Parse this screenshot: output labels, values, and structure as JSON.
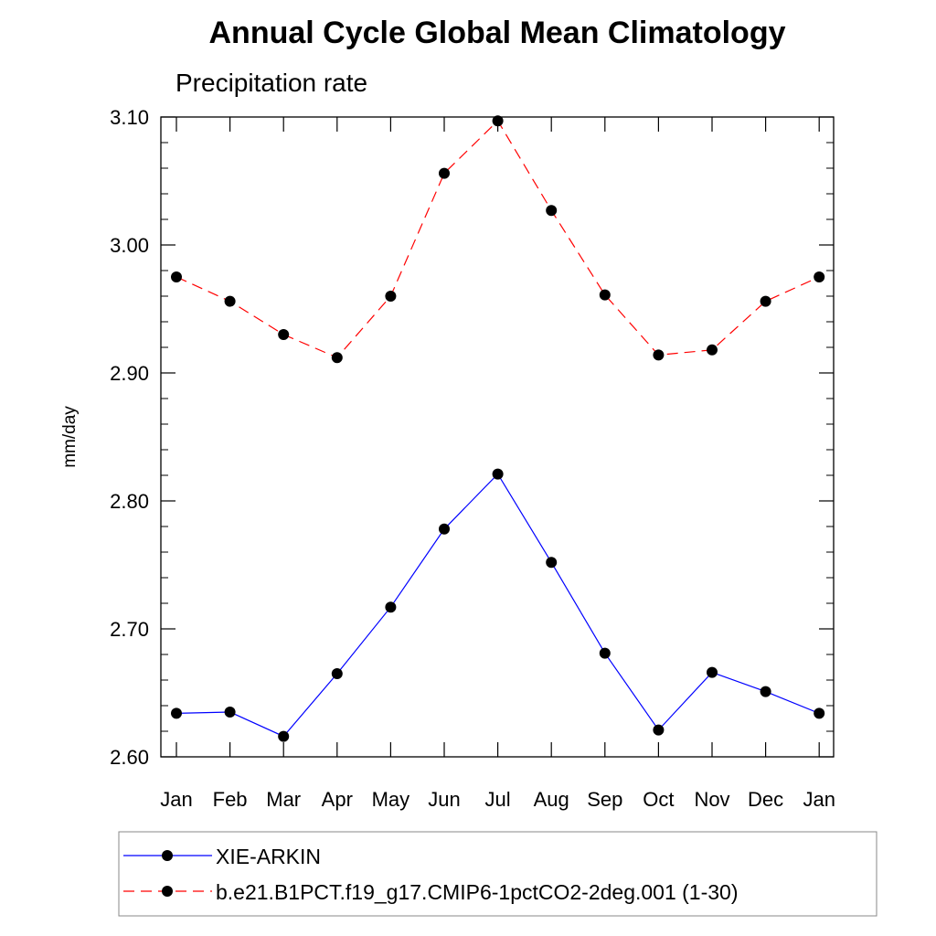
{
  "chart_data": {
    "type": "line",
    "title": "Annual Cycle Global Mean Climatology",
    "subtitle": "Precipitation rate",
    "xlabel": "",
    "ylabel": "mm/day",
    "categories": [
      "Jan",
      "Feb",
      "Mar",
      "Apr",
      "May",
      "Jun",
      "Jul",
      "Aug",
      "Sep",
      "Oct",
      "Nov",
      "Dec",
      "Jan"
    ],
    "ylim": [
      2.6,
      3.1
    ],
    "yticks": [
      "2.60",
      "2.70",
      "2.80",
      "2.90",
      "3.00",
      "3.10"
    ],
    "series": [
      {
        "name": "XIE-ARKIN",
        "color": "#0000ff",
        "dash": "solid",
        "values": [
          2.634,
          2.635,
          2.616,
          2.665,
          2.717,
          2.778,
          2.821,
          2.752,
          2.681,
          2.621,
          2.666,
          2.651,
          2.634
        ]
      },
      {
        "name": "b.e21.B1PCT.f19_g17.CMIP6-1pctCO2-2deg.001 (1-30)",
        "color": "#ff0000",
        "dash": "dashed",
        "values": [
          2.975,
          2.956,
          2.93,
          2.912,
          2.96,
          3.056,
          3.097,
          3.027,
          2.961,
          2.914,
          2.918,
          2.956,
          2.975
        ]
      }
    ]
  }
}
